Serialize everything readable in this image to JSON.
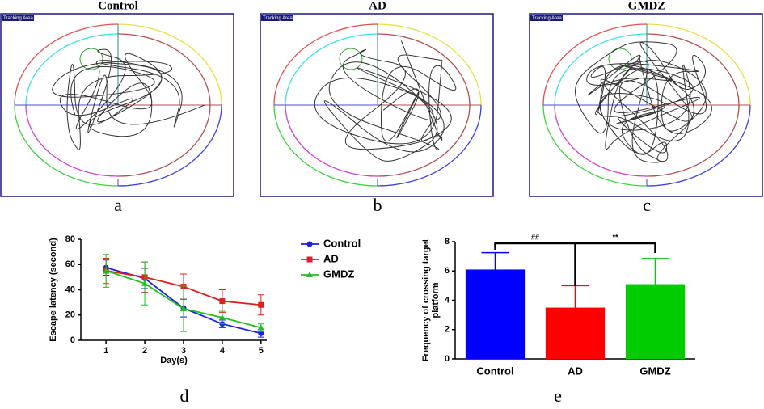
{
  "tracking_panels": [
    {
      "title": "Control",
      "tag": "Tracking Area",
      "label": "a"
    },
    {
      "title": "AD",
      "tag": "Tracking Area",
      "label": "b"
    },
    {
      "title": "GMDZ",
      "tag": "Tracking Area",
      "label": "c"
    }
  ],
  "chart_data": [
    {
      "type": "line",
      "panel_label": "d",
      "xlabel": "Day(s)",
      "ylabel": "Escape latency (second)",
      "x": [
        1,
        2,
        3,
        4,
        5
      ],
      "xlim": [
        0.35,
        5.15
      ],
      "xticks": [
        1,
        2,
        3,
        4,
        5
      ],
      "ylim": [
        0,
        80
      ],
      "yticks": [
        0,
        20,
        40,
        60,
        80
      ],
      "legend": "outside right",
      "series": [
        {
          "name": "Control",
          "color": "#1f1fe0",
          "marker": "circle",
          "values": [
            57.5,
            49,
            25.5,
            13,
            5.5
          ],
          "errors": [
            6,
            8,
            7,
            3,
            3
          ]
        },
        {
          "name": "AD",
          "color": "#e01f1f",
          "marker": "square",
          "values": [
            55,
            50,
            42.5,
            31,
            28
          ],
          "errors": [
            10,
            12,
            10,
            9,
            8
          ]
        },
        {
          "name": "GMDZ",
          "color": "#1fc01f",
          "marker": "triangle",
          "values": [
            55,
            45,
            25,
            18,
            10
          ],
          "errors": [
            13,
            17,
            18,
            5,
            3
          ]
        }
      ]
    },
    {
      "type": "bar",
      "panel_label": "e",
      "ylabel": [
        "Frequency of crossing target",
        "platform"
      ],
      "categories": [
        "Control",
        "AD",
        "GMDZ"
      ],
      "values": [
        6.1,
        3.5,
        5.1
      ],
      "errors": [
        1.15,
        1.5,
        1.75
      ],
      "colors": [
        "#0000ff",
        "#ff0000",
        "#00cc00"
      ],
      "ylim": [
        0,
        8
      ],
      "yticks": [
        0,
        2,
        4,
        6,
        8
      ],
      "annotations": [
        "##",
        "**"
      ]
    }
  ]
}
